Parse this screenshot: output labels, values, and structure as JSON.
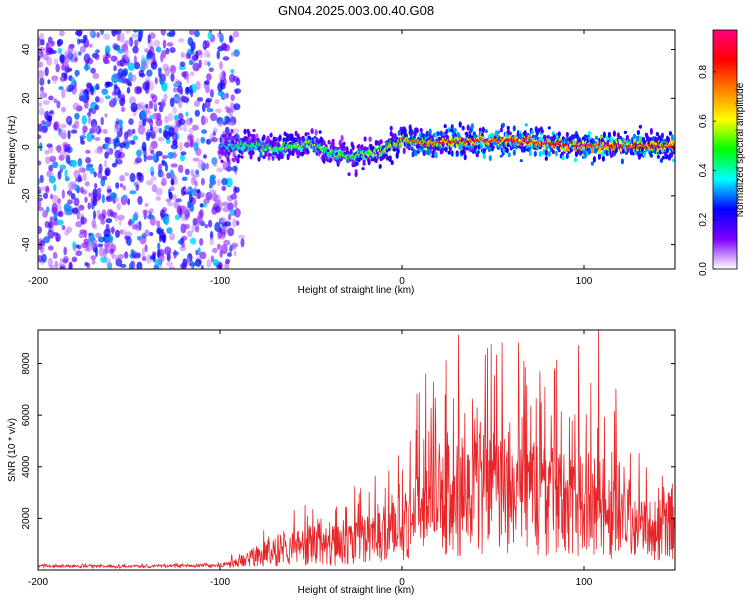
{
  "title": "GN04.2025.003.00.40.G08",
  "chart_data": [
    {
      "type": "heatmap",
      "xlabel": "Height of straight line (km)",
      "ylabel": "Frequency (Hz)",
      "xlim": [
        -200,
        150
      ],
      "ylim": [
        -50,
        48
      ],
      "xticks": [
        -200,
        -100,
        0,
        100
      ],
      "yticks": [
        -40,
        -20,
        0,
        20,
        40
      ],
      "colorbar": {
        "label": "Normalized spectral amplitude",
        "range": [
          0,
          0.97
        ],
        "ticks": [
          0.0,
          0.2,
          0.4,
          0.6,
          0.8
        ],
        "colormap": "rainbow",
        "colors": [
          "#ffffff",
          "#8000ff",
          "#0000ff",
          "#00ffff",
          "#00ff00",
          "#ffff00",
          "#ff8000",
          "#ff0000",
          "#ff0080"
        ]
      },
      "noise_region": {
        "x": [
          -200,
          -90
        ],
        "y": [
          -50,
          48
        ],
        "amplitude": [
          0.05,
          0.35
        ]
      },
      "ridge": {
        "x": [
          -100,
          -90,
          -80,
          -70,
          -60,
          -50,
          -40,
          -30,
          -20,
          -10,
          0,
          10,
          20,
          30,
          40,
          50,
          60,
          70,
          80,
          90,
          100,
          110,
          120,
          130,
          140,
          150
        ],
        "frequency": [
          0.5,
          0,
          0.5,
          -1,
          0.5,
          1.5,
          -2,
          -4,
          -3,
          -1.5,
          3,
          2,
          2,
          2,
          2.5,
          3,
          2.5,
          2,
          1.5,
          1,
          1,
          1,
          0.5,
          0.5,
          0.5,
          0.5
        ],
        "peak_amplitude": [
          0.35,
          0.5,
          0.5,
          0.55,
          0.6,
          0.6,
          0.55,
          0.55,
          0.6,
          0.65,
          0.75,
          0.85,
          0.9,
          0.9,
          0.95,
          0.95,
          0.95,
          0.95,
          0.95,
          0.95,
          0.95,
          0.95,
          0.95,
          0.9,
          0.9,
          0.9
        ]
      },
      "grid": false
    },
    {
      "type": "line",
      "xlabel": "Height of straight line (km)",
      "ylabel": "SNR (10 * v/v)",
      "xlim": [
        -200,
        150
      ],
      "ylim": [
        0,
        9300
      ],
      "xticks": [
        -200,
        -100,
        0,
        100
      ],
      "yticks": [
        2000,
        4000,
        6000,
        8000
      ],
      "series": [
        {
          "color": "#e8262a",
          "envelope_x": [
            -200,
            -150,
            -100,
            -90,
            -80,
            -70,
            -60,
            -50,
            -40,
            -30,
            -20,
            -10,
            0,
            10,
            20,
            30,
            40,
            50,
            60,
            70,
            80,
            90,
            100,
            110,
            120,
            130,
            140,
            150
          ],
          "envelope_mean": [
            150,
            150,
            180,
            300,
            700,
            900,
            1000,
            1200,
            1100,
            1200,
            1600,
            1800,
            2300,
            2800,
            3000,
            3500,
            3700,
            3700,
            3700,
            3600,
            3300,
            3200,
            3000,
            3000,
            2500,
            2000,
            2000,
            2400
          ],
          "envelope_max": [
            300,
            300,
            400,
            700,
            1800,
            2200,
            2300,
            2700,
            2500,
            3100,
            3600,
            3800,
            5200,
            7600,
            7400,
            9100,
            8500,
            8800,
            8800,
            8300,
            7800,
            8700,
            7800,
            9300,
            6400,
            5100,
            3800,
            3700
          ],
          "peaks": [
            {
              "x": 13,
              "y": 7600
            },
            {
              "x": 31,
              "y": 9100
            },
            {
              "x": 47,
              "y": 8600
            },
            {
              "x": 55,
              "y": 8800
            },
            {
              "x": 64,
              "y": 8800
            },
            {
              "x": 84,
              "y": 7800
            },
            {
              "x": 97,
              "y": 8700
            },
            {
              "x": 108,
              "y": 9300
            }
          ]
        }
      ],
      "grid": false
    }
  ]
}
